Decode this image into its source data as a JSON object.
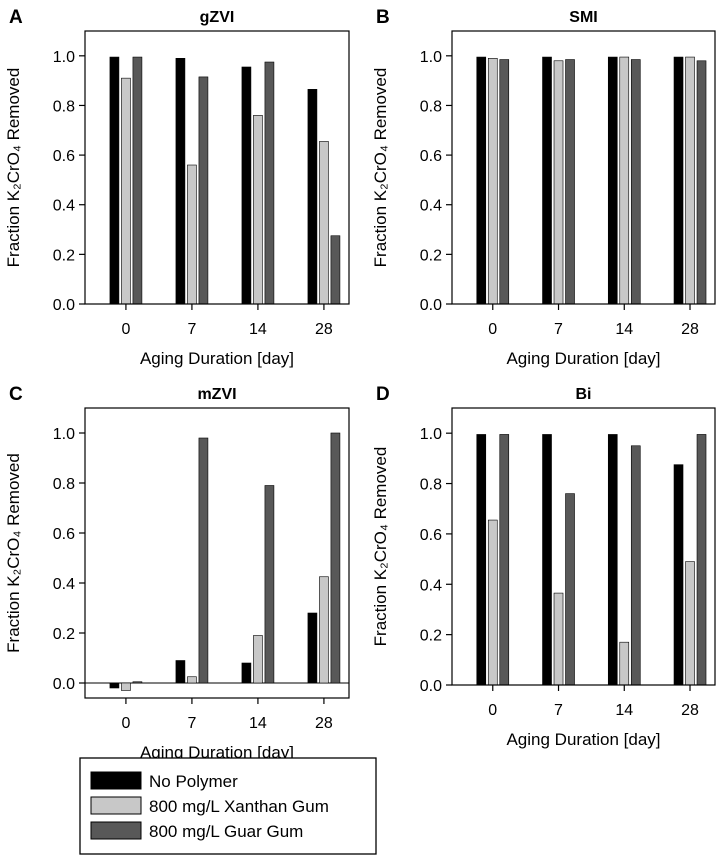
{
  "chart_data": [
    {
      "panel_letter": "A",
      "title": "gZVI",
      "type": "bar",
      "categories": [
        "0",
        "7",
        "14",
        "28"
      ],
      "series": [
        {
          "name": "No Polymer",
          "values": [
            0.995,
            0.99,
            0.955,
            0.865
          ]
        },
        {
          "name": "800 mg/L Xanthan Gum",
          "values": [
            0.91,
            0.56,
            0.76,
            0.655
          ]
        },
        {
          "name": "800 mg/L Guar Gum",
          "values": [
            0.995,
            0.915,
            0.975,
            0.275
          ]
        }
      ],
      "xlabel": "Aging Duration [day]",
      "ylabel": "Fraction K₂CrO₄ Removed",
      "ylim": [
        0,
        1.1
      ],
      "yticks": [
        "0.0",
        "0.2",
        "0.4",
        "0.6",
        "0.8",
        "1.0"
      ]
    },
    {
      "panel_letter": "B",
      "title": "SMI",
      "type": "bar",
      "categories": [
        "0",
        "7",
        "14",
        "28"
      ],
      "series": [
        {
          "name": "No Polymer",
          "values": [
            0.995,
            0.995,
            0.995,
            0.995
          ]
        },
        {
          "name": "800 mg/L Xanthan Gum",
          "values": [
            0.99,
            0.98,
            0.995,
            0.995
          ]
        },
        {
          "name": "800 mg/L Guar Gum",
          "values": [
            0.985,
            0.985,
            0.985,
            0.98
          ]
        }
      ],
      "xlabel": "Aging Duration [day]",
      "ylabel": "Fraction K₂CrO₄ Removed",
      "ylim": [
        0,
        1.1
      ],
      "yticks": [
        "0.0",
        "0.2",
        "0.4",
        "0.6",
        "0.8",
        "1.0"
      ]
    },
    {
      "panel_letter": "C",
      "title": "mZVI",
      "type": "bar",
      "categories": [
        "0",
        "7",
        "14",
        "28"
      ],
      "series": [
        {
          "name": "No Polymer",
          "values": [
            -0.02,
            0.09,
            0.08,
            0.28
          ]
        },
        {
          "name": "800 mg/L Xanthan Gum",
          "values": [
            -0.03,
            0.025,
            0.19,
            0.425
          ]
        },
        {
          "name": "800 mg/L Guar Gum",
          "values": [
            0.005,
            0.98,
            0.79,
            1.0
          ]
        }
      ],
      "xlabel": "Aging Duration [day]",
      "ylabel": "Fraction K₂CrO₄ Removed",
      "ylim": [
        -0.06,
        1.1
      ],
      "yticks": [
        "0.0",
        "0.2",
        "0.4",
        "0.6",
        "0.8",
        "1.0"
      ]
    },
    {
      "panel_letter": "D",
      "title": "Bi",
      "type": "bar",
      "categories": [
        "0",
        "7",
        "14",
        "28"
      ],
      "series": [
        {
          "name": "No Polymer",
          "values": [
            0.995,
            0.995,
            0.995,
            0.875
          ]
        },
        {
          "name": "800 mg/L Xanthan Gum",
          "values": [
            0.655,
            0.365,
            0.17,
            0.49
          ]
        },
        {
          "name": "800 mg/L Guar Gum",
          "values": [
            0.995,
            0.76,
            0.95,
            0.995
          ]
        }
      ],
      "xlabel": "Aging Duration [day]",
      "ylabel": "Fraction K₂CrO₄ Removed",
      "ylim": [
        0,
        1.1
      ],
      "yticks": [
        "0.0",
        "0.2",
        "0.4",
        "0.6",
        "0.8",
        "1.0"
      ]
    }
  ],
  "legend": {
    "items": [
      "No Polymer",
      "800 mg/L Xanthan Gum",
      "800 mg/L Guar Gum"
    ]
  },
  "colors": {
    "No Polymer": "#000000",
    "800 mg/L Xanthan Gum": "#c8c8c8",
    "800 mg/L Guar Gum": "#585858"
  }
}
